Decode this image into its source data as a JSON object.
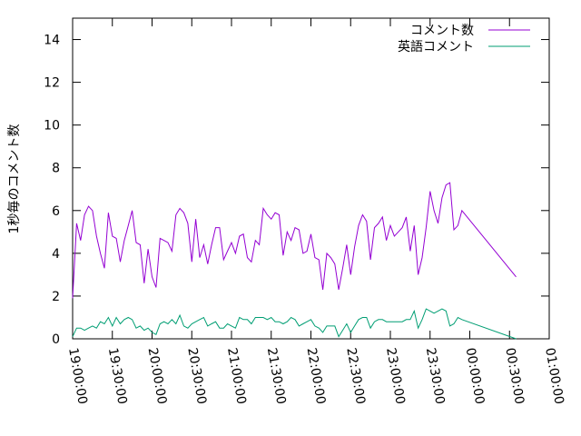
{
  "chart_data": {
    "type": "line",
    "title": "",
    "xlabel": "",
    "ylabel": "1秒毎のコメント数",
    "xlim": [
      "19:00:00",
      "01:00:00"
    ],
    "ylim": [
      0,
      15
    ],
    "yticks": [
      0,
      2,
      4,
      6,
      8,
      10,
      12,
      14
    ],
    "xticks": [
      "19:00:00",
      "19:30:00",
      "20:00:00",
      "20:30:00",
      "21:00:00",
      "21:30:00",
      "22:00:00",
      "22:30:00",
      "23:00:00",
      "23:30:00",
      "00:00:00",
      "00:30:00",
      "01:00:00"
    ],
    "x_start": "19:00:00",
    "x_end": "00:35:00",
    "x_step_minutes": 3,
    "grid": false,
    "legend_position": "top-right",
    "series": [
      {
        "name": "コメント数",
        "color": "#9400d3",
        "values": [
          1.9,
          5.4,
          4.6,
          5.8,
          6.2,
          6.0,
          4.8,
          4.0,
          3.3,
          5.9,
          4.8,
          4.7,
          3.6,
          4.6,
          5.3,
          6.0,
          4.5,
          4.4,
          2.6,
          4.2,
          2.9,
          2.4,
          4.7,
          4.6,
          4.5,
          4.1,
          5.8,
          6.1,
          5.9,
          5.4,
          3.6,
          5.6,
          3.8,
          4.4,
          3.5,
          4.4,
          5.2,
          5.2,
          3.7,
          4.1,
          4.5,
          4.0,
          4.8,
          4.9,
          3.8,
          3.6,
          4.6,
          4.4,
          6.1,
          5.8,
          5.6,
          5.9,
          5.8,
          3.9,
          5.0,
          4.6,
          5.2,
          5.1,
          4.0,
          4.1,
          4.9,
          3.8,
          3.7,
          2.3,
          4.0,
          3.8,
          3.5,
          2.3,
          3.3,
          4.4,
          3.0,
          4.3,
          5.3,
          5.8,
          5.5,
          3.7,
          5.2,
          5.4,
          5.7,
          4.6,
          5.3,
          4.8,
          5.0,
          5.2,
          5.7,
          4.1,
          5.3,
          3.0,
          3.8,
          5.2,
          6.9,
          6.0,
          5.4,
          6.6,
          7.2,
          7.3,
          5.1,
          5.3,
          6.0,
          2.9
        ]
      },
      {
        "name": "英語コメント",
        "color": "#009e73",
        "values": [
          0.1,
          0.5,
          0.5,
          0.4,
          0.5,
          0.6,
          0.5,
          0.8,
          0.7,
          1.0,
          0.6,
          1.0,
          0.7,
          0.9,
          1.0,
          0.9,
          0.5,
          0.6,
          0.4,
          0.5,
          0.3,
          0.2,
          0.7,
          0.8,
          0.7,
          0.9,
          0.7,
          1.1,
          0.6,
          0.5,
          0.7,
          0.8,
          0.9,
          1.0,
          0.6,
          0.7,
          0.8,
          0.5,
          0.5,
          0.7,
          0.6,
          0.5,
          1.0,
          0.9,
          0.9,
          0.7,
          1.0,
          1.0,
          1.0,
          0.9,
          1.0,
          0.8,
          0.8,
          0.7,
          0.8,
          1.0,
          0.9,
          0.6,
          0.7,
          0.8,
          0.9,
          0.6,
          0.5,
          0.3,
          0.6,
          0.6,
          0.6,
          0.1,
          0.4,
          0.7,
          0.3,
          0.6,
          0.9,
          1.0,
          1.0,
          0.5,
          0.8,
          0.9,
          0.9,
          0.8,
          0.8,
          0.8,
          0.8,
          0.8,
          0.9,
          0.9,
          1.3,
          0.5,
          0.9,
          1.4,
          1.3,
          1.2,
          1.3,
          1.4,
          1.3,
          0.6,
          0.7,
          1.0,
          0.9,
          0.0
        ]
      }
    ]
  }
}
